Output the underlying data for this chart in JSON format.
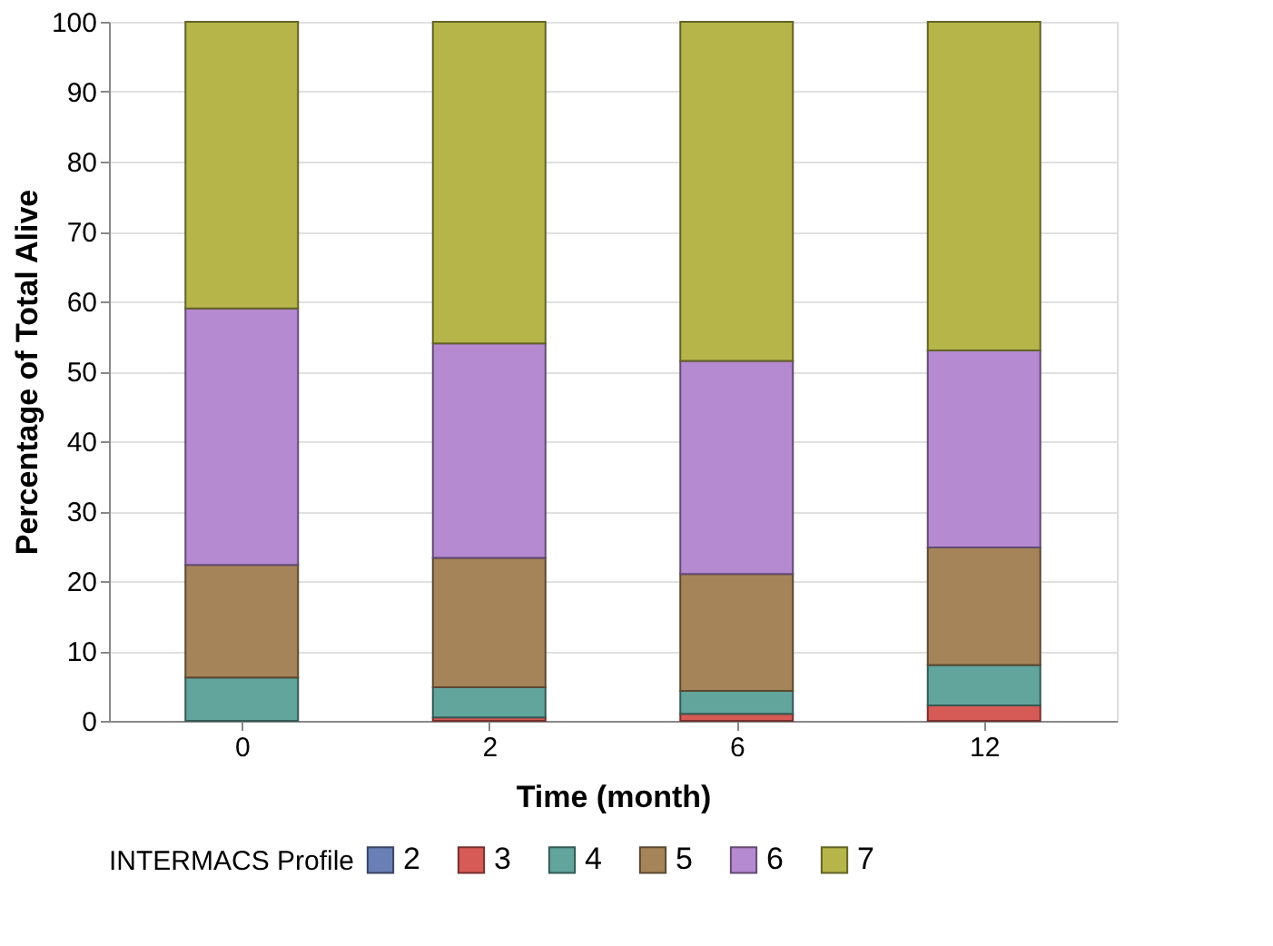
{
  "chart_data": {
    "type": "bar",
    "stacked": true,
    "xlabel": "Time (month)",
    "ylabel": "Percentage of Total Alive",
    "legend_title": "INTERMACS Profile",
    "legend": "bottom",
    "categories": [
      "0",
      "2",
      "6",
      "12"
    ],
    "series": [
      {
        "name": "2",
        "color": "#6a7fb5",
        "values": [
          0,
          0,
          0,
          0
        ]
      },
      {
        "name": "3",
        "color": "#d65a55",
        "values": [
          0,
          0.5,
          1,
          2.2
        ]
      },
      {
        "name": "4",
        "color": "#62a59c",
        "values": [
          6.2,
          4.3,
          3.3,
          5.8
        ]
      },
      {
        "name": "5",
        "color": "#a6845a",
        "values": [
          16.1,
          18.5,
          16.7,
          16.8
        ]
      },
      {
        "name": "6",
        "color": "#b58ad0",
        "values": [
          36.7,
          30.7,
          30.5,
          28.2
        ]
      },
      {
        "name": "7",
        "color": "#b5b54a",
        "values": [
          41,
          46,
          48.5,
          47
        ]
      }
    ],
    "ylim": [
      0,
      100
    ],
    "yticks": [
      0,
      10,
      20,
      30,
      40,
      50,
      60,
      70,
      80,
      90,
      100
    ],
    "grid": "y"
  }
}
